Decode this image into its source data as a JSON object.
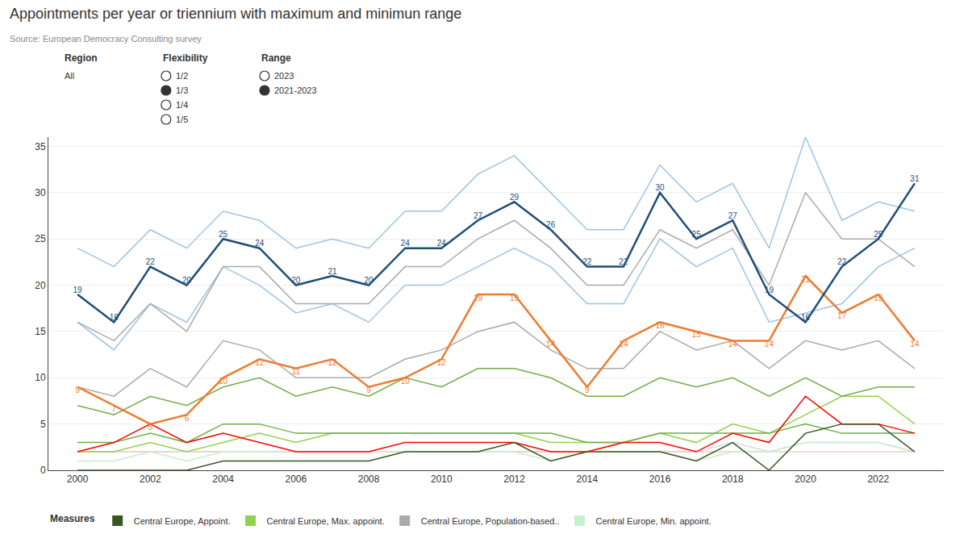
{
  "chart_data": {
    "type": "line",
    "title": "Appointments per year or triennium with maximum and minimun range",
    "subtitle": "Source: European Democracy Consulting survey",
    "x": [
      2000,
      2001,
      2002,
      2003,
      2004,
      2005,
      2006,
      2007,
      2008,
      2009,
      2010,
      2011,
      2012,
      2013,
      2014,
      2015,
      2016,
      2017,
      2018,
      2019,
      2020,
      2021,
      2022,
      2023
    ],
    "xlim": [
      1999.2,
      2023.8
    ],
    "xticks": [
      2000,
      2002,
      2004,
      2006,
      2008,
      2010,
      2012,
      2014,
      2016,
      2018,
      2020,
      2022
    ],
    "ylim": [
      0,
      36
    ],
    "yticks": [
      0,
      5,
      10,
      15,
      20,
      25,
      30,
      35
    ],
    "grid": "y",
    "series": [
      {
        "color": "#D9D9D9",
        "values": [
          2,
          2,
          2,
          2,
          2,
          2,
          2,
          2,
          2,
          2,
          2,
          2,
          2,
          2,
          2,
          2,
          2,
          2,
          3,
          2,
          3,
          3,
          3,
          2
        ]
      },
      {
        "color": "#F4CCCC",
        "values": [
          2,
          2,
          2,
          2,
          2,
          2,
          2,
          2,
          2,
          2,
          2,
          2,
          2,
          2,
          2,
          2,
          2,
          2,
          2,
          2,
          2,
          2,
          2,
          2
        ]
      },
      {
        "color": "#C6EFCE",
        "values": [
          1,
          1,
          2,
          1,
          2,
          2,
          2,
          2,
          2,
          2,
          2,
          2,
          2,
          1,
          2,
          2,
          2,
          1,
          2,
          2,
          3,
          3,
          3,
          2
        ]
      },
      {
        "color": "#92D050",
        "values": [
          2,
          2,
          3,
          2,
          3,
          4,
          3,
          4,
          4,
          4,
          4,
          4,
          4,
          3,
          3,
          3,
          4,
          3,
          5,
          4,
          6,
          8,
          8,
          5
        ]
      },
      {
        "color": "#9DC3E6",
        "values": [
          16,
          13,
          18,
          16,
          22,
          20,
          17,
          18,
          16,
          20,
          20,
          22,
          24,
          22,
          18,
          18,
          25,
          22,
          24,
          16,
          17,
          18,
          22,
          24
        ]
      },
      {
        "color": "#9DC3E6",
        "values": [
          24,
          22,
          26,
          24,
          28,
          27,
          24,
          25,
          24,
          28,
          28,
          32,
          34,
          30,
          26,
          26,
          33,
          29,
          31,
          24,
          36,
          27,
          29,
          28
        ]
      },
      {
        "color": "#AAAAAA",
        "values": [
          9,
          8,
          11,
          9,
          14,
          13,
          10,
          10,
          10,
          12,
          13,
          15,
          16,
          13,
          11,
          11,
          15,
          13,
          14,
          11,
          14,
          13,
          14,
          11
        ]
      },
      {
        "color": "#AAAAAA",
        "values": [
          16,
          14,
          18,
          15,
          22,
          22,
          18,
          18,
          18,
          22,
          22,
          25,
          27,
          24,
          20,
          20,
          26,
          24,
          26,
          20,
          30,
          25,
          25,
          22
        ]
      },
      {
        "color": "#70AD47",
        "values": [
          3,
          3,
          4,
          3,
          5,
          5,
          4,
          4,
          4,
          4,
          4,
          4,
          4,
          4,
          3,
          3,
          4,
          4,
          4,
          4,
          5,
          4,
          4,
          4
        ]
      },
      {
        "color": "#70AD47",
        "values": [
          7,
          6,
          8,
          7,
          9,
          10,
          8,
          9,
          8,
          10,
          9,
          11,
          11,
          10,
          8,
          8,
          10,
          9,
          10,
          8,
          10,
          8,
          9,
          9
        ]
      },
      {
        "color": "#FF0000",
        "values": [
          2,
          3,
          5,
          3,
          4,
          3,
          2,
          2,
          2,
          3,
          3,
          3,
          3,
          2,
          2,
          3,
          3,
          2,
          4,
          3,
          8,
          5,
          5,
          4
        ]
      },
      {
        "color": "#ED7D31",
        "data_labels": true,
        "values": [
          9,
          7,
          5,
          6,
          10,
          12,
          11,
          12,
          9,
          10,
          12,
          19,
          19,
          14,
          9,
          14,
          16,
          15,
          14,
          14,
          21,
          17,
          19,
          14
        ]
      },
      {
        "color": "#375623",
        "values": [
          0,
          0,
          0,
          0,
          1,
          1,
          1,
          1,
          1,
          2,
          2,
          2,
          3,
          1,
          2,
          2,
          2,
          1,
          3,
          0,
          4,
          5,
          5,
          2
        ]
      },
      {
        "color": "#1F4E79",
        "data_labels": true,
        "values": [
          19,
          16,
          22,
          20,
          25,
          24,
          20,
          21,
          20,
          24,
          24,
          27,
          29,
          26,
          22,
          22,
          30,
          25,
          27,
          19,
          16,
          22,
          25,
          31
        ]
      }
    ],
    "filters": [
      {
        "title": "Region",
        "options": [
          "All"
        ]
      },
      {
        "title": "Flexibility",
        "options": [
          "1/2",
          "1/3",
          "1/4",
          "1/5"
        ],
        "selected": "1/3"
      },
      {
        "title": "Range",
        "options": [
          "2023",
          "2021-2023"
        ],
        "selected": "2021-2023"
      }
    ],
    "legend": "bottom",
    "legend_title": "Measures",
    "legend_items": [
      {
        "label": "Central Europe, Appoint.",
        "color": "#375623"
      },
      {
        "label": "Central Europe, Max. appoint.",
        "color": "#92D050"
      },
      {
        "label": "Central Europe, Population-based..",
        "color": "#AAAAAA"
      },
      {
        "label": "Central Europe, Min. appoint.",
        "color": "#C6EFCE"
      }
    ]
  }
}
